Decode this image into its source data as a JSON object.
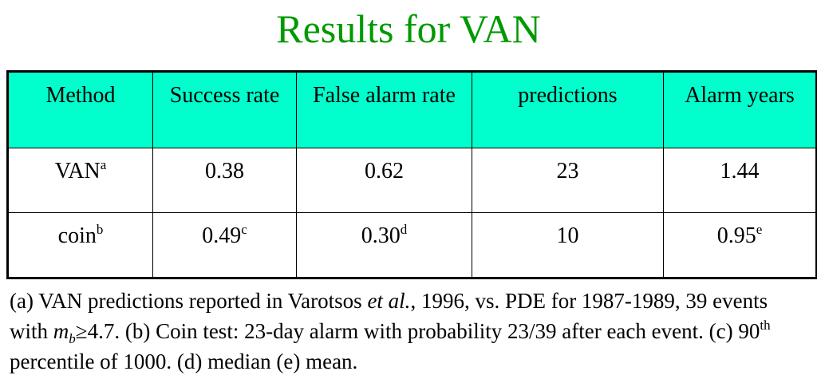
{
  "title": "Results for VAN",
  "table": {
    "header": [
      "Method",
      "Success rate",
      "False alarm rate",
      "predictions",
      "Alarm years"
    ],
    "rows": [
      [
        {
          "text": "VAN",
          "note": "a"
        },
        "0.38",
        "0.62",
        "23",
        "1.44"
      ],
      [
        {
          "text": "coin",
          "note": "b"
        },
        {
          "text": "0.49",
          "note": "c"
        },
        {
          "text": "0.30",
          "note": "d"
        },
        "10",
        {
          "text": "0.95",
          "note": "e"
        }
      ]
    ]
  },
  "footnote": [
    "(a) VAN predictions reported in Varotsos ",
    "et al.",
    ", 1996, vs. PDE for 1987-1989, 39 events with ",
    "m",
    "b",
    "≥4.7. (b) Coin test: 23-day alarm with probability 23/39 after each event. (c) 90",
    "th",
    " percentile of 1000. (d) median (e) mean."
  ]
}
